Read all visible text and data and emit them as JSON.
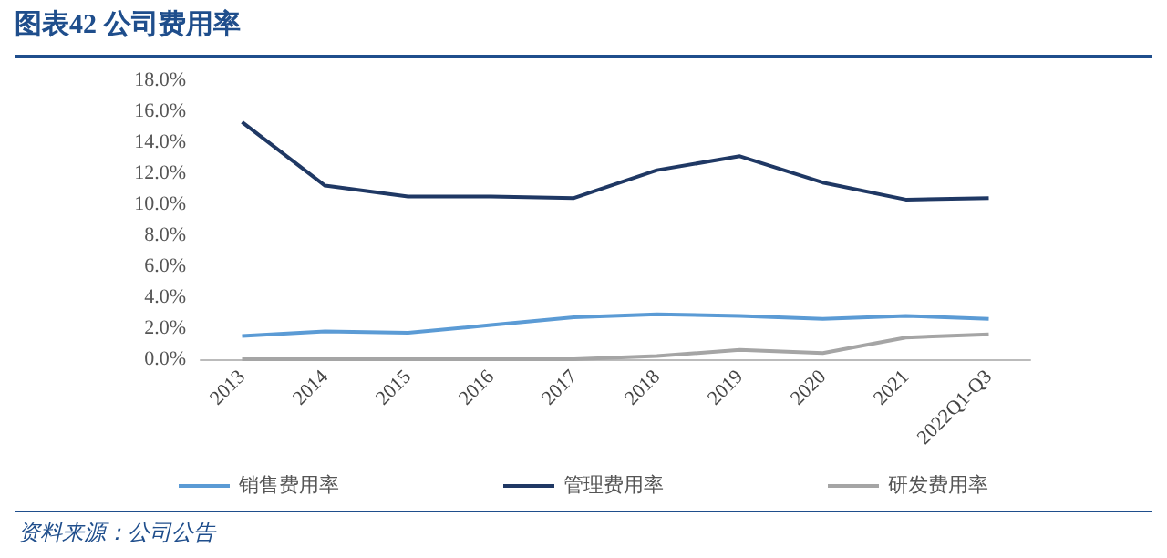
{
  "chart_data": {
    "type": "line",
    "title": "图表42 公司费用率",
    "categories": [
      "2013",
      "2014",
      "2015",
      "2016",
      "2017",
      "2018",
      "2019",
      "2020",
      "2021",
      "2022Q1-Q3"
    ],
    "series": [
      {
        "name": "销售费用率",
        "color": "#5b9bd5",
        "values": [
          1.5,
          1.8,
          1.7,
          2.2,
          2.7,
          2.9,
          2.8,
          2.6,
          2.8,
          2.6
        ]
      },
      {
        "name": "管理费用率",
        "color": "#1f3864",
        "values": [
          15.3,
          11.2,
          10.5,
          10.5,
          10.4,
          12.2,
          13.1,
          11.4,
          10.3,
          10.4
        ]
      },
      {
        "name": "研发费用率",
        "color": "#a5a5a5",
        "values": [
          0,
          0,
          0,
          0,
          0,
          0.2,
          0.6,
          0.4,
          1.4,
          1.6
        ]
      }
    ],
    "ylim": [
      0,
      18
    ],
    "yticks": [
      {
        "value": 0,
        "label": "0.0%"
      },
      {
        "value": 2,
        "label": "2.0%"
      },
      {
        "value": 4,
        "label": "4.0%"
      },
      {
        "value": 6,
        "label": "6.0%"
      },
      {
        "value": 8,
        "label": "8.0%"
      },
      {
        "value": 10,
        "label": "10.0%"
      },
      {
        "value": 12,
        "label": "12.0%"
      },
      {
        "value": 14,
        "label": "14.0%"
      },
      {
        "value": 16,
        "label": "16.0%"
      },
      {
        "value": 18,
        "label": "18.0%"
      }
    ],
    "grid": false,
    "legend": "bottom",
    "marker": "none",
    "line_style": "solid",
    "annotations": [
      "资料来源：公司公告"
    ]
  }
}
